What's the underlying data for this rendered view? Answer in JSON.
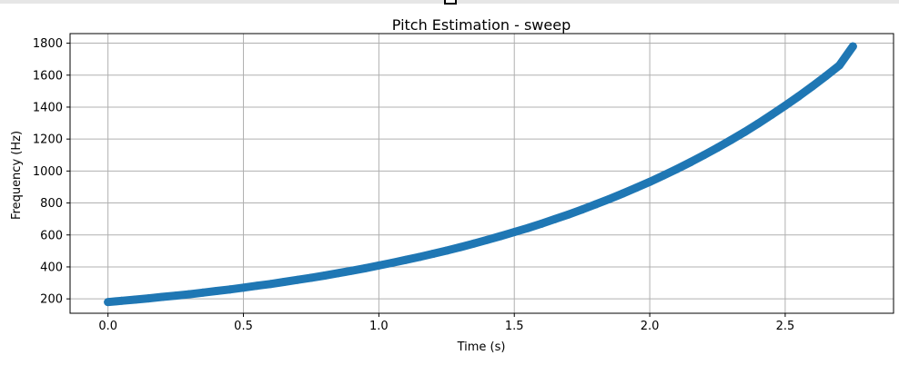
{
  "chart_data": {
    "type": "scatter",
    "title": "Pitch Estimation - sweep",
    "xlabel": "Time (s)",
    "ylabel": "Frequency (Hz)",
    "xlim": [
      -0.14,
      2.9
    ],
    "ylim": [
      110,
      1860
    ],
    "xticks": [
      0.0,
      0.5,
      1.0,
      1.5,
      2.0,
      2.5
    ],
    "xtick_labels": [
      "0.0",
      "0.5",
      "1.0",
      "1.5",
      "2.0",
      "2.5"
    ],
    "yticks": [
      200,
      400,
      600,
      800,
      1000,
      1200,
      1400,
      1600,
      1800
    ],
    "ytick_labels": [
      "200",
      "400",
      "600",
      "800",
      "1000",
      "1200",
      "1400",
      "1600",
      "1800"
    ],
    "grid": true,
    "color": "#1f77b4",
    "x": [
      0.0,
      0.05,
      0.1,
      0.15,
      0.2,
      0.25,
      0.3,
      0.35,
      0.4,
      0.45,
      0.5,
      0.55,
      0.6,
      0.65,
      0.7,
      0.75,
      0.8,
      0.85,
      0.9,
      0.95,
      1.0,
      1.05,
      1.1,
      1.15,
      1.2,
      1.25,
      1.3,
      1.35,
      1.4,
      1.45,
      1.5,
      1.55,
      1.6,
      1.65,
      1.7,
      1.75,
      1.8,
      1.85,
      1.9,
      1.95,
      2.0,
      2.05,
      2.1,
      2.15,
      2.2,
      2.25,
      2.3,
      2.35,
      2.4,
      2.45,
      2.5,
      2.55,
      2.6,
      2.65,
      2.7,
      2.75
    ],
    "y": [
      180,
      188,
      195,
      203,
      212,
      220,
      229,
      239,
      249,
      259,
      270,
      282,
      293,
      306,
      319,
      332,
      346,
      361,
      376,
      392,
      409,
      426,
      444,
      462,
      482,
      502,
      523,
      546,
      569,
      593,
      618,
      643,
      670,
      699,
      728,
      759,
      791,
      824,
      859,
      895,
      932,
      972,
      1012,
      1055,
      1100,
      1146,
      1194,
      1244,
      1297,
      1352,
      1409,
      1468,
      1530,
      1594,
      1661,
      1780
    ]
  }
}
